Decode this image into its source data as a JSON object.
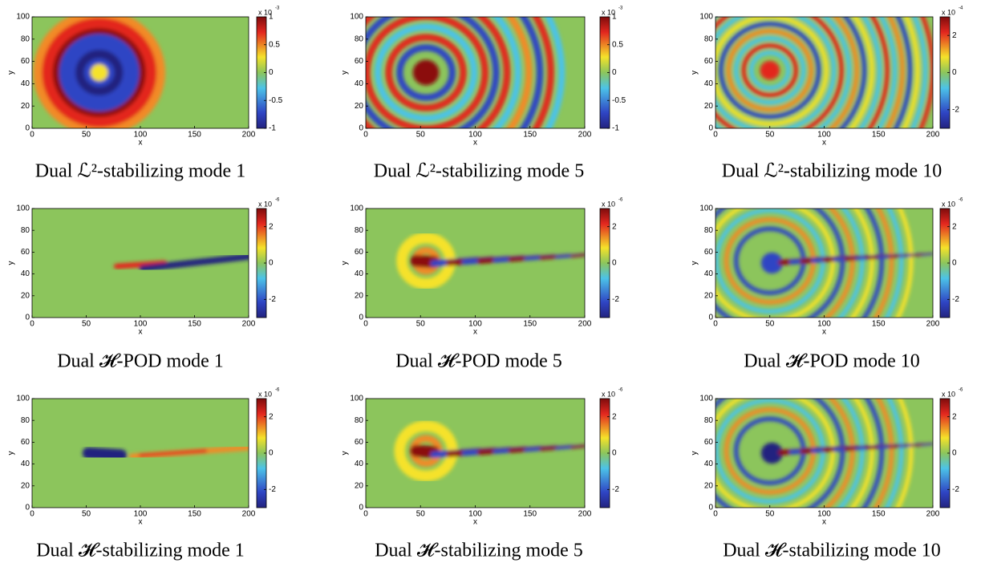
{
  "chart_data": [
    {
      "type": "heatmap",
      "caption": "Dual ℒ²-stabilizing mode 1",
      "xlabel": "x",
      "ylabel": "y",
      "xlim": [
        0,
        200
      ],
      "xticks": [
        0,
        50,
        100,
        150,
        200
      ],
      "ylim": [
        0,
        100
      ],
      "yticks": [
        0,
        20,
        40,
        60,
        80,
        100
      ],
      "clim": [
        -1,
        1
      ],
      "cticks": [
        -1,
        -0.5,
        0,
        0.5,
        1
      ],
      "cmultiplier": "x 10",
      "cexponent": "-3"
    },
    {
      "type": "heatmap",
      "caption": "Dual ℒ²-stabilizing mode 5",
      "xlabel": "x",
      "ylabel": "y",
      "xlim": [
        0,
        200
      ],
      "xticks": [
        0,
        50,
        100,
        150,
        200
      ],
      "ylim": [
        0,
        100
      ],
      "yticks": [
        0,
        20,
        40,
        60,
        80,
        100
      ],
      "clim": [
        -1,
        1
      ],
      "cticks": [
        -1,
        -0.5,
        0,
        0.5,
        1
      ],
      "cmultiplier": "x 10",
      "cexponent": "-3"
    },
    {
      "type": "heatmap",
      "caption": "Dual ℒ²-stabilizing mode 10",
      "xlabel": "x",
      "ylabel": "y",
      "xlim": [
        0,
        200
      ],
      "xticks": [
        0,
        50,
        100,
        150,
        200
      ],
      "ylim": [
        0,
        100
      ],
      "yticks": [
        0,
        20,
        40,
        60,
        80,
        100
      ],
      "clim": [
        -3,
        3
      ],
      "cticks": [
        -2,
        0,
        2
      ],
      "cmultiplier": "x 10",
      "cexponent": "-4"
    },
    {
      "type": "heatmap",
      "caption": "Dual 𝓗-POD mode 1",
      "xlabel": "x",
      "ylabel": "y",
      "xlim": [
        0,
        200
      ],
      "xticks": [
        0,
        50,
        100,
        150,
        200
      ],
      "ylim": [
        0,
        100
      ],
      "yticks": [
        0,
        20,
        40,
        60,
        80,
        100
      ],
      "clim": [
        -3,
        3
      ],
      "cticks": [
        -2,
        0,
        2
      ],
      "cmultiplier": "x 10",
      "cexponent": "-6"
    },
    {
      "type": "heatmap",
      "caption": "Dual 𝓗-POD mode 5",
      "xlabel": "x",
      "ylabel": "y",
      "xlim": [
        0,
        200
      ],
      "xticks": [
        0,
        50,
        100,
        150,
        200
      ],
      "ylim": [
        0,
        100
      ],
      "yticks": [
        0,
        20,
        40,
        60,
        80,
        100
      ],
      "clim": [
        -3,
        3
      ],
      "cticks": [
        -2,
        0,
        2
      ],
      "cmultiplier": "x 10",
      "cexponent": "-6"
    },
    {
      "type": "heatmap",
      "caption": "Dual 𝓗-POD mode 10",
      "xlabel": "x",
      "ylabel": "y",
      "xlim": [
        0,
        200
      ],
      "xticks": [
        0,
        50,
        100,
        150,
        200
      ],
      "ylim": [
        0,
        100
      ],
      "yticks": [
        0,
        20,
        40,
        60,
        80,
        100
      ],
      "clim": [
        -3,
        3
      ],
      "cticks": [
        -2,
        0,
        2
      ],
      "cmultiplier": "x 10",
      "cexponent": "-6"
    },
    {
      "type": "heatmap",
      "caption": "Dual 𝓗-stabilizing mode 1",
      "xlabel": "x",
      "ylabel": "y",
      "xlim": [
        0,
        200
      ],
      "xticks": [
        0,
        50,
        100,
        150,
        200
      ],
      "ylim": [
        0,
        100
      ],
      "yticks": [
        0,
        20,
        40,
        60,
        80,
        100
      ],
      "clim": [
        -3,
        3
      ],
      "cticks": [
        -2,
        0,
        2
      ],
      "cmultiplier": "x 10",
      "cexponent": "-6"
    },
    {
      "type": "heatmap",
      "caption": "Dual 𝓗-stabilizing mode 5",
      "xlabel": "x",
      "ylabel": "y",
      "xlim": [
        0,
        200
      ],
      "xticks": [
        0,
        50,
        100,
        150,
        200
      ],
      "ylim": [
        0,
        100
      ],
      "yticks": [
        0,
        20,
        40,
        60,
        80,
        100
      ],
      "clim": [
        -3,
        3
      ],
      "cticks": [
        -2,
        0,
        2
      ],
      "cmultiplier": "x 10",
      "cexponent": "-6"
    },
    {
      "type": "heatmap",
      "caption": "Dual 𝓗-stabilizing mode 10",
      "xlabel": "x",
      "ylabel": "y",
      "xlim": [
        0,
        200
      ],
      "xticks": [
        0,
        50,
        100,
        150,
        200
      ],
      "ylim": [
        0,
        100
      ],
      "yticks": [
        0,
        20,
        40,
        60,
        80,
        100
      ],
      "clim": [
        -3,
        3
      ],
      "cticks": [
        -2,
        0,
        2
      ],
      "cmultiplier": "x 10",
      "cexponent": "-6"
    }
  ]
}
